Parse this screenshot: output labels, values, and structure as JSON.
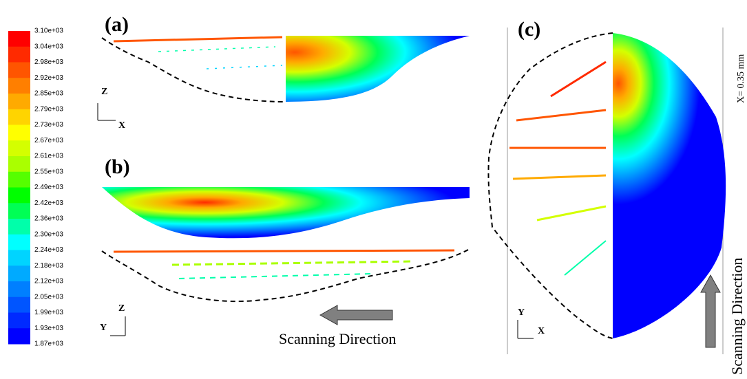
{
  "colorbar": {
    "labels": [
      "3.10e+03",
      "3.04e+03",
      "2.98e+03",
      "2.92e+03",
      "2.85e+03",
      "2.79e+03",
      "2.73e+03",
      "2.67e+03",
      "2.61e+03",
      "2.55e+03",
      "2.49e+03",
      "2.42e+03",
      "2.36e+03",
      "2.30e+03",
      "2.24e+03",
      "2.18e+03",
      "2.12e+03",
      "2.05e+03",
      "1.99e+03",
      "1.93e+03",
      "1.87e+03"
    ],
    "colors": [
      "#ff0000",
      "#ff2a00",
      "#ff5500",
      "#ff7f00",
      "#ffaa00",
      "#ffd400",
      "#ffff00",
      "#d4ff00",
      "#aaff00",
      "#55ff00",
      "#00ff00",
      "#00ff55",
      "#00ffaa",
      "#00ffff",
      "#00d4ff",
      "#00aaff",
      "#007fff",
      "#0055ff",
      "#002aff",
      "#0000ff"
    ]
  },
  "panels": [
    {
      "label": "(a)",
      "axes": [
        "Z",
        "X"
      ]
    },
    {
      "label": "(b)",
      "axes": [
        "Z",
        "Y"
      ],
      "direction": "Scanning Direction"
    },
    {
      "label": "(c)",
      "axes": [
        "Y",
        "X"
      ],
      "direction": "Scanning Direction",
      "note": "X= 0.35 mm"
    }
  ]
}
